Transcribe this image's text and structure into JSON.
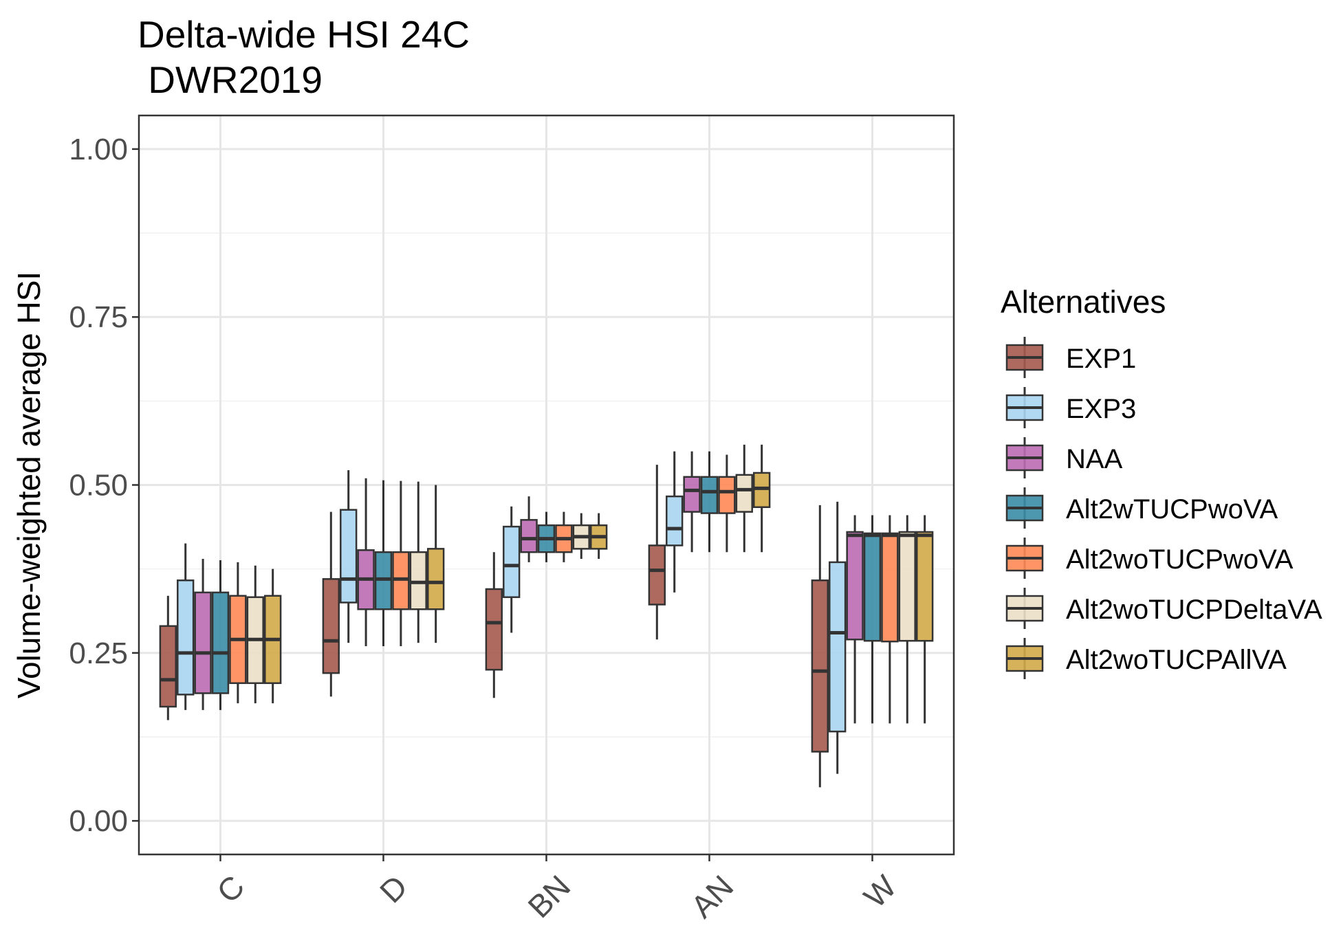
{
  "chart_data": {
    "type": "boxplot",
    "title_lines": [
      "Delta-wide HSI 24C",
      " DWR2019"
    ],
    "xlabel": "",
    "ylabel": "Volume-weighted average HSI",
    "ylim": [
      -0.05,
      1.05
    ],
    "yticks": [
      0,
      0.25,
      0.5,
      0.75,
      1.0
    ],
    "ytick_labels": [
      "0.00",
      "0.25",
      "0.50",
      "0.75",
      "1.00"
    ],
    "categories": [
      "C",
      "D",
      "BN",
      "AN",
      "W"
    ],
    "grid": true,
    "legend": {
      "title": "Alternatives",
      "position": "right"
    },
    "series": [
      {
        "name": "EXP1",
        "color": "#A65A4F",
        "boxes": [
          {
            "min": 0.15,
            "q1": 0.17,
            "median": 0.21,
            "q3": 0.29,
            "max": 0.335
          },
          {
            "min": 0.185,
            "q1": 0.22,
            "median": 0.268,
            "q3": 0.36,
            "max": 0.46
          },
          {
            "min": 0.183,
            "q1": 0.225,
            "median": 0.295,
            "q3": 0.345,
            "max": 0.4
          },
          {
            "min": 0.27,
            "q1": 0.322,
            "median": 0.373,
            "q3": 0.41,
            "max": 0.53
          },
          {
            "min": 0.05,
            "q1": 0.103,
            "median": 0.223,
            "q3": 0.358,
            "max": 0.47
          }
        ]
      },
      {
        "name": "EXP3",
        "color": "#A8D5F0",
        "boxes": [
          {
            "min": 0.165,
            "q1": 0.188,
            "median": 0.25,
            "q3": 0.358,
            "max": 0.413
          },
          {
            "min": 0.265,
            "q1": 0.325,
            "median": 0.36,
            "q3": 0.463,
            "max": 0.522
          },
          {
            "min": 0.28,
            "q1": 0.333,
            "median": 0.38,
            "q3": 0.438,
            "max": 0.468
          },
          {
            "min": 0.34,
            "q1": 0.41,
            "median": 0.435,
            "q3": 0.483,
            "max": 0.55
          },
          {
            "min": 0.07,
            "q1": 0.133,
            "median": 0.28,
            "q3": 0.385,
            "max": 0.475
          }
        ]
      },
      {
        "name": "NAA",
        "color": "#BB6BB2",
        "boxes": [
          {
            "min": 0.165,
            "q1": 0.19,
            "median": 0.25,
            "q3": 0.34,
            "max": 0.39
          },
          {
            "min": 0.26,
            "q1": 0.315,
            "median": 0.36,
            "q3": 0.403,
            "max": 0.51
          },
          {
            "min": 0.385,
            "q1": 0.4,
            "median": 0.42,
            "q3": 0.448,
            "max": 0.483
          },
          {
            "min": 0.4,
            "q1": 0.46,
            "median": 0.492,
            "q3": 0.512,
            "max": 0.55
          },
          {
            "min": 0.145,
            "q1": 0.27,
            "median": 0.425,
            "q3": 0.43,
            "max": 0.455
          }
        ]
      },
      {
        "name": "Alt2wTUCPwoVA",
        "color": "#3A8DA6",
        "boxes": [
          {
            "min": 0.165,
            "q1": 0.19,
            "median": 0.25,
            "q3": 0.34,
            "max": 0.388
          },
          {
            "min": 0.26,
            "q1": 0.315,
            "median": 0.36,
            "q3": 0.4,
            "max": 0.507
          },
          {
            "min": 0.385,
            "q1": 0.4,
            "median": 0.42,
            "q3": 0.44,
            "max": 0.46
          },
          {
            "min": 0.4,
            "q1": 0.458,
            "median": 0.49,
            "q3": 0.512,
            "max": 0.55
          },
          {
            "min": 0.145,
            "q1": 0.268,
            "median": 0.425,
            "q3": 0.428,
            "max": 0.455
          }
        ]
      },
      {
        "name": "Alt2woTUCPwoVA",
        "color": "#FF8A55",
        "boxes": [
          {
            "min": 0.175,
            "q1": 0.205,
            "median": 0.27,
            "q3": 0.335,
            "max": 0.385
          },
          {
            "min": 0.26,
            "q1": 0.315,
            "median": 0.36,
            "q3": 0.4,
            "max": 0.506
          },
          {
            "min": 0.385,
            "q1": 0.4,
            "median": 0.42,
            "q3": 0.44,
            "max": 0.46
          },
          {
            "min": 0.4,
            "q1": 0.458,
            "median": 0.49,
            "q3": 0.512,
            "max": 0.545
          },
          {
            "min": 0.145,
            "q1": 0.267,
            "median": 0.425,
            "q3": 0.428,
            "max": 0.455
          }
        ]
      },
      {
        "name": "Alt2woTUCPDeltaVA",
        "color": "#EBDFC6",
        "boxes": [
          {
            "min": 0.175,
            "q1": 0.205,
            "median": 0.27,
            "q3": 0.333,
            "max": 0.38
          },
          {
            "min": 0.265,
            "q1": 0.315,
            "median": 0.355,
            "q3": 0.4,
            "max": 0.505
          },
          {
            "min": 0.39,
            "q1": 0.405,
            "median": 0.423,
            "q3": 0.44,
            "max": 0.458
          },
          {
            "min": 0.4,
            "q1": 0.46,
            "median": 0.493,
            "q3": 0.515,
            "max": 0.56
          },
          {
            "min": 0.145,
            "q1": 0.268,
            "median": 0.425,
            "q3": 0.43,
            "max": 0.455
          }
        ]
      },
      {
        "name": "Alt2woTUCPAllVA",
        "color": "#D1AA48",
        "boxes": [
          {
            "min": 0.175,
            "q1": 0.205,
            "median": 0.27,
            "q3": 0.335,
            "max": 0.375
          },
          {
            "min": 0.265,
            "q1": 0.315,
            "median": 0.355,
            "q3": 0.405,
            "max": 0.5
          },
          {
            "min": 0.39,
            "q1": 0.405,
            "median": 0.423,
            "q3": 0.44,
            "max": 0.458
          },
          {
            "min": 0.4,
            "q1": 0.467,
            "median": 0.495,
            "q3": 0.518,
            "max": 0.56
          },
          {
            "min": 0.145,
            "q1": 0.268,
            "median": 0.425,
            "q3": 0.43,
            "max": 0.455
          }
        ]
      }
    ]
  }
}
